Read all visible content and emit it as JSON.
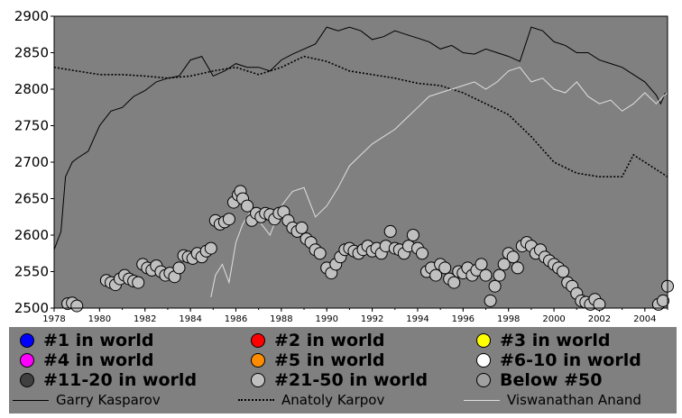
{
  "chart_data": {
    "type": "line",
    "title": "",
    "xlabel": "",
    "ylabel": "",
    "xlim": [
      1978,
      2005
    ],
    "ylim": [
      2500,
      2900
    ],
    "x_ticks": [
      "1978",
      "1980",
      "1982",
      "1984",
      "1986",
      "1988",
      "1990",
      "1992",
      "1994",
      "1996",
      "1998",
      "2000",
      "2002",
      "2004"
    ],
    "y_ticks": [
      "2500",
      "2550",
      "2600",
      "2650",
      "2700",
      "2750",
      "2800",
      "2850",
      "2900"
    ],
    "grid": false,
    "series": [
      {
        "name": "Garry Kasparov",
        "style": "solid",
        "color": "#000000",
        "x": [
          1978.0,
          1978.3,
          1978.5,
          1978.8,
          1979.0,
          1979.5,
          1980.0,
          1980.5,
          1981.0,
          1981.5,
          1982.0,
          1982.5,
          1983.0,
          1983.5,
          1984.0,
          1984.5,
          1985.0,
          1985.5,
          1986.0,
          1986.5,
          1987.0,
          1987.5,
          1988.0,
          1988.5,
          1989.0,
          1989.5,
          1990.0,
          1990.5,
          1991.0,
          1991.5,
          1992.0,
          1992.5,
          1993.0,
          1993.5,
          1994.0,
          1994.5,
          1995.0,
          1995.5,
          1996.0,
          1996.5,
          1997.0,
          1997.5,
          1998.0,
          1998.5,
          1999.0,
          1999.5,
          2000.0,
          2000.5,
          2001.0,
          2001.5,
          2002.0,
          2002.5,
          2003.0,
          2003.5,
          2004.0,
          2004.5,
          2004.7,
          2004.9
        ],
        "values": [
          2580,
          2605,
          2680,
          2700,
          2705,
          2715,
          2750,
          2770,
          2775,
          2790,
          2798,
          2810,
          2815,
          2818,
          2840,
          2845,
          2818,
          2825,
          2835,
          2830,
          2830,
          2825,
          2840,
          2848,
          2855,
          2862,
          2885,
          2880,
          2885,
          2880,
          2868,
          2872,
          2880,
          2875,
          2870,
          2865,
          2855,
          2860,
          2850,
          2848,
          2855,
          2850,
          2845,
          2838,
          2885,
          2880,
          2865,
          2860,
          2850,
          2850,
          2840,
          2835,
          2830,
          2820,
          2810,
          2792,
          2780,
          2795
        ]
      },
      {
        "name": "Anatoly Karpov",
        "style": "dotted",
        "color": "#000000",
        "x": [
          1978.0,
          1979.0,
          1980.0,
          1981.0,
          1982.0,
          1983.0,
          1984.0,
          1985.0,
          1986.0,
          1987.0,
          1988.0,
          1989.0,
          1990.0,
          1991.0,
          1992.0,
          1993.0,
          1994.0,
          1995.0,
          1996.0,
          1997.0,
          1998.0,
          1999.0,
          2000.0,
          2001.0,
          2002.0,
          2003.0,
          2003.5,
          2004.0,
          2004.5,
          2005.0
        ],
        "values": [
          2830,
          2825,
          2820,
          2820,
          2818,
          2815,
          2818,
          2825,
          2830,
          2820,
          2830,
          2845,
          2838,
          2825,
          2820,
          2815,
          2808,
          2805,
          2795,
          2780,
          2765,
          2735,
          2700,
          2685,
          2680,
          2680,
          2710,
          2700,
          2690,
          2680
        ]
      },
      {
        "name": "Viswanathan Anand",
        "style": "solid",
        "color": "#e0e0e0",
        "x": [
          1984.9,
          1985.1,
          1985.4,
          1985.7,
          1986.0,
          1986.3,
          1986.6,
          1987.0,
          1987.5,
          1988.0,
          1988.5,
          1989.0,
          1989.5,
          1990.0,
          1990.5,
          1991.0,
          1991.5,
          1992.0,
          1992.5,
          1993.0,
          1993.5,
          1994.0,
          1994.5,
          1995.0,
          1995.5,
          1996.0,
          1996.5,
          1997.0,
          1997.5,
          1998.0,
          1998.5,
          1999.0,
          1999.5,
          2000.0,
          2000.5,
          2001.0,
          2001.5,
          2002.0,
          2002.5,
          2003.0,
          2003.5,
          2004.0,
          2004.5,
          2004.8,
          2005.0
        ],
        "values": [
          2515,
          2545,
          2560,
          2535,
          2590,
          2615,
          2630,
          2620,
          2600,
          2640,
          2660,
          2665,
          2625,
          2640,
          2665,
          2695,
          2710,
          2725,
          2735,
          2745,
          2760,
          2775,
          2790,
          2795,
          2800,
          2805,
          2810,
          2800,
          2810,
          2825,
          2830,
          2810,
          2815,
          2800,
          2795,
          2810,
          2790,
          2780,
          2785,
          2770,
          2780,
          2795,
          2780,
          2790,
          2795
        ]
      },
      {
        "name": "Below #50",
        "type": "scatter",
        "marker_color": "#c0c0c0",
        "points": [
          [
            1978.6,
            2506
          ],
          [
            1978.8,
            2507
          ],
          [
            1979.0,
            2503
          ],
          [
            1980.3,
            2538
          ],
          [
            1980.5,
            2535
          ],
          [
            1980.7,
            2532
          ],
          [
            1980.9,
            2540
          ],
          [
            1981.1,
            2545
          ],
          [
            1981.3,
            2540
          ],
          [
            1981.5,
            2537
          ],
          [
            1981.7,
            2535
          ],
          [
            1981.9,
            2560
          ],
          [
            1982.1,
            2555
          ],
          [
            1982.3,
            2552
          ],
          [
            1982.5,
            2558
          ],
          [
            1982.7,
            2550
          ],
          [
            1982.9,
            2545
          ],
          [
            1983.1,
            2548
          ],
          [
            1983.3,
            2543
          ],
          [
            1983.5,
            2555
          ],
          [
            1983.7,
            2572
          ],
          [
            1983.9,
            2570
          ],
          [
            1984.1,
            2568
          ],
          [
            1984.3,
            2575
          ],
          [
            1984.5,
            2570
          ],
          [
            1984.7,
            2578
          ],
          [
            1984.9,
            2582
          ],
          [
            1985.1,
            2620
          ],
          [
            1985.3,
            2615
          ],
          [
            1985.5,
            2618
          ],
          [
            1985.7,
            2622
          ],
          [
            1985.9,
            2645
          ],
          [
            1986.1,
            2655
          ],
          [
            1986.2,
            2660
          ],
          [
            1986.3,
            2650
          ],
          [
            1986.5,
            2640
          ],
          [
            1986.7,
            2620
          ],
          [
            1986.9,
            2630
          ],
          [
            1987.1,
            2625
          ],
          [
            1987.3,
            2630
          ],
          [
            1987.5,
            2628
          ],
          [
            1987.7,
            2622
          ],
          [
            1987.9,
            2630
          ],
          [
            1988.1,
            2632
          ],
          [
            1988.3,
            2620
          ],
          [
            1988.5,
            2610
          ],
          [
            1988.7,
            2605
          ],
          [
            1988.9,
            2610
          ],
          [
            1989.1,
            2595
          ],
          [
            1989.3,
            2590
          ],
          [
            1989.5,
            2580
          ],
          [
            1989.7,
            2575
          ],
          [
            1990.0,
            2555
          ],
          [
            1990.2,
            2548
          ],
          [
            1990.4,
            2560
          ],
          [
            1990.6,
            2570
          ],
          [
            1990.8,
            2580
          ],
          [
            1991.0,
            2582
          ],
          [
            1991.2,
            2578
          ],
          [
            1991.4,
            2575
          ],
          [
            1991.6,
            2580
          ],
          [
            1991.8,
            2585
          ],
          [
            1992.0,
            2578
          ],
          [
            1992.2,
            2582
          ],
          [
            1992.4,
            2575
          ],
          [
            1992.6,
            2585
          ],
          [
            1992.8,
            2605
          ],
          [
            1993.0,
            2582
          ],
          [
            1993.2,
            2580
          ],
          [
            1993.4,
            2575
          ],
          [
            1993.6,
            2585
          ],
          [
            1993.8,
            2600
          ],
          [
            1994.0,
            2582
          ],
          [
            1994.2,
            2575
          ],
          [
            1994.4,
            2550
          ],
          [
            1994.6,
            2555
          ],
          [
            1994.8,
            2545
          ],
          [
            1995.0,
            2560
          ],
          [
            1995.2,
            2555
          ],
          [
            1995.4,
            2540
          ],
          [
            1995.6,
            2535
          ],
          [
            1995.8,
            2550
          ],
          [
            1996.0,
            2548
          ],
          [
            1996.2,
            2555
          ],
          [
            1996.4,
            2545
          ],
          [
            1996.6,
            2552
          ],
          [
            1996.8,
            2560
          ],
          [
            1997.0,
            2545
          ],
          [
            1997.2,
            2510
          ],
          [
            1997.4,
            2530
          ],
          [
            1997.6,
            2545
          ],
          [
            1997.8,
            2560
          ],
          [
            1998.0,
            2575
          ],
          [
            1998.2,
            2570
          ],
          [
            1998.4,
            2555
          ],
          [
            1998.6,
            2585
          ],
          [
            1998.8,
            2590
          ],
          [
            1999.0,
            2585
          ],
          [
            1999.2,
            2575
          ],
          [
            1999.4,
            2580
          ],
          [
            1999.6,
            2570
          ],
          [
            1999.8,
            2565
          ],
          [
            2000.0,
            2560
          ],
          [
            2000.2,
            2555
          ],
          [
            2000.4,
            2550
          ],
          [
            2000.6,
            2535
          ],
          [
            2000.8,
            2530
          ],
          [
            2001.0,
            2520
          ],
          [
            2001.2,
            2510
          ],
          [
            2001.4,
            2508
          ],
          [
            2001.6,
            2505
          ],
          [
            2001.8,
            2512
          ],
          [
            2002.0,
            2505
          ],
          [
            2004.6,
            2505
          ],
          [
            2004.8,
            2510
          ],
          [
            2005.0,
            2530
          ]
        ]
      }
    ],
    "legend_placement": "bottom"
  },
  "legend": {
    "markers": [
      {
        "label": "#1 in world",
        "color": "#0000ff"
      },
      {
        "label": "#2 in world",
        "color": "#ff0000"
      },
      {
        "label": "#3 in world",
        "color": "#ffff00"
      },
      {
        "label": "#4 in world",
        "color": "#ff00ff"
      },
      {
        "label": "#5 in world",
        "color": "#ff8c00"
      },
      {
        "label": "#6-10 in world",
        "color": "#ffffff"
      },
      {
        "label": "#11-20 in world",
        "color": "#404040"
      },
      {
        "label": "#21-50 in world",
        "color": "#c0c0c0"
      },
      {
        "label": "Below #50",
        "color": "#a0a0a0"
      }
    ],
    "lines": [
      {
        "label": "Garry Kasparov",
        "style": "solid"
      },
      {
        "label": "Anatoly Karpov",
        "style": "dotted"
      },
      {
        "label": "Viswanathan Anand",
        "style": "light"
      }
    ]
  }
}
